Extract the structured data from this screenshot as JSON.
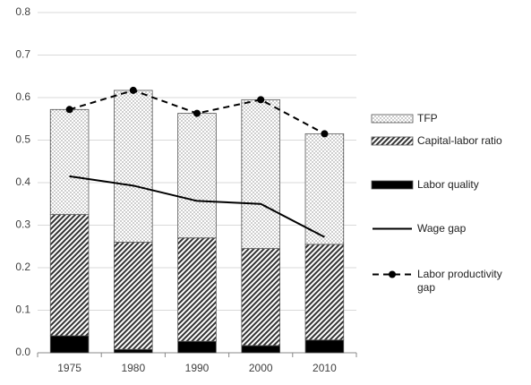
{
  "chart_data": {
    "type": "bar",
    "categories": [
      "1975",
      "1980",
      "1990",
      "2000",
      "2010"
    ],
    "ylim": [
      0,
      0.8
    ],
    "yticks": [
      {
        "value": 0,
        "label": "0.0"
      },
      0.1,
      0.2,
      0.3,
      0.4,
      0.5,
      0.6,
      0.7,
      0.8
    ],
    "grid": true,
    "legend": "right",
    "series": [
      {
        "name": "Labor quality",
        "type": "bar",
        "pattern": "solid",
        "color": "#000000",
        "values": [
          0.04,
          0.008,
          0.027,
          0.017,
          0.03
        ]
      },
      {
        "name": "Capital-labor ratio",
        "type": "bar",
        "pattern": "hatch",
        "color": "#404040",
        "values": [
          0.285,
          0.252,
          0.243,
          0.228,
          0.225
        ]
      },
      {
        "name": "TFP",
        "type": "bar",
        "pattern": "dots",
        "color": "#404040",
        "values": [
          0.247,
          0.357,
          0.293,
          0.35,
          0.26
        ]
      },
      {
        "name": "Wage gap",
        "type": "line",
        "style": "solid",
        "color": "#000000",
        "values": [
          0.415,
          0.393,
          0.357,
          0.35,
          0.272
        ]
      },
      {
        "name": "Labor productivity gap",
        "type": "line",
        "style": "dashed",
        "marker": "circle",
        "color": "#000000",
        "values": [
          0.572,
          0.617,
          0.563,
          0.595,
          0.515
        ]
      }
    ]
  }
}
